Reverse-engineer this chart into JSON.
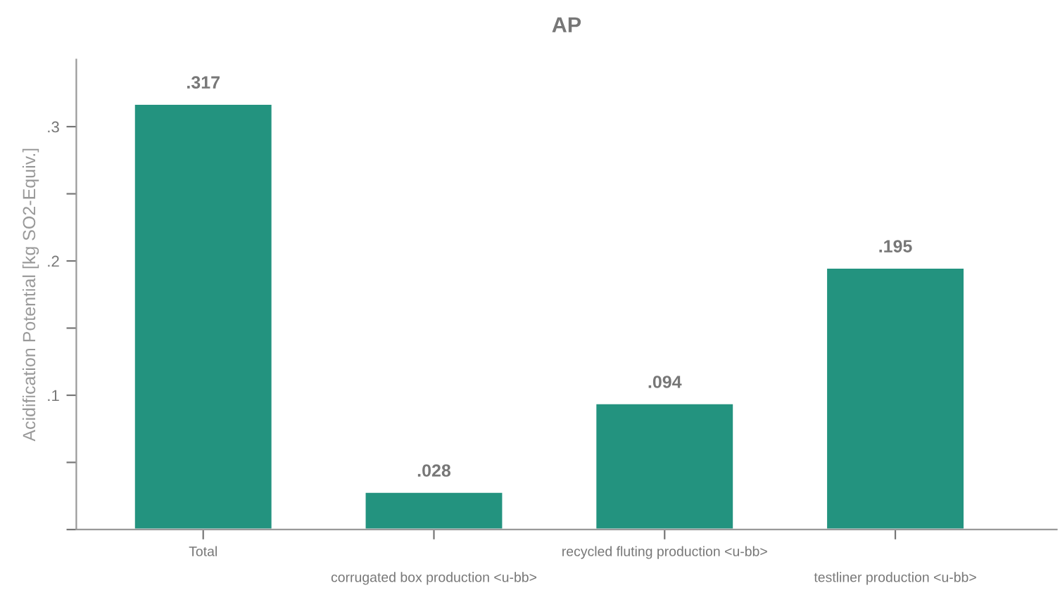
{
  "chart_data": {
    "type": "bar",
    "title": "AP",
    "ylabel": "Acidification Potential [kg SO2-Equiv.]",
    "categories": [
      "Total",
      "corrugated box production <u-bb>",
      "recycled fluting production <u-bb>",
      "testliner production <u-bb>"
    ],
    "values": [
      0.317,
      0.028,
      0.094,
      0.195
    ],
    "value_labels": [
      ".317",
      ".028",
      ".094",
      ".195"
    ],
    "color": "#23937f",
    "ylim": [
      0,
      0.35
    ],
    "yticks": [
      {
        "value": 0,
        "label": null
      },
      {
        "value": 0.05,
        "label": null
      },
      {
        "value": 0.1,
        "label": ".1"
      },
      {
        "value": 0.15,
        "label": null
      },
      {
        "value": 0.2,
        "label": ".2"
      },
      {
        "value": 0.25,
        "label": null
      },
      {
        "value": 0.3,
        "label": ".3"
      }
    ],
    "grid": false,
    "legend": false
  }
}
